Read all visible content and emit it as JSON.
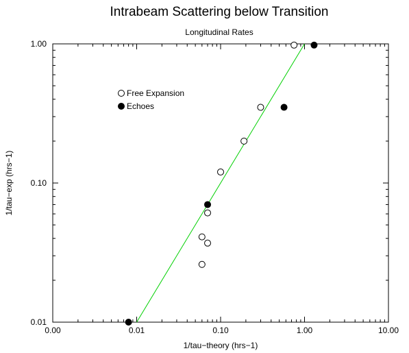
{
  "chart_data": {
    "type": "scatter",
    "title": "Intrabeam Scattering below Transition",
    "subtitle": "Longitudinal Rates",
    "xlabel": "1/tau−theory (hrs−1)",
    "ylabel": "1/tau−exp (hrs−1)",
    "xscale": "log",
    "yscale": "log",
    "xlim": [
      0.001,
      10
    ],
    "ylim": [
      0.01,
      1
    ],
    "x_ticks": [
      0.001,
      0.01,
      0.1,
      1,
      10
    ],
    "x_tick_labels": [
      "0.00",
      "0.01",
      "0.10",
      "1.00",
      "10.00"
    ],
    "y_ticks": [
      0.01,
      0.1,
      1
    ],
    "y_tick_labels": [
      "0.01",
      "0.10",
      "1.00"
    ],
    "grid": false,
    "legend_position": "upper-left",
    "series": [
      {
        "name": "Free Expansion",
        "marker": "open-circle",
        "x": [
          0.75,
          0.3,
          0.19,
          0.1,
          0.07,
          0.06,
          0.07,
          0.06
        ],
        "y": [
          0.98,
          0.35,
          0.2,
          0.12,
          0.061,
          0.041,
          0.037,
          0.026
        ]
      },
      {
        "name": "Echoes",
        "marker": "filled-circle",
        "x": [
          1.3,
          0.57,
          0.07,
          0.008
        ],
        "y": [
          0.98,
          0.35,
          0.07,
          0.01
        ]
      }
    ],
    "fit_line": {
      "color": "#00d000",
      "x": [
        0.01,
        1.0
      ],
      "y": [
        0.01,
        1.0
      ]
    }
  }
}
